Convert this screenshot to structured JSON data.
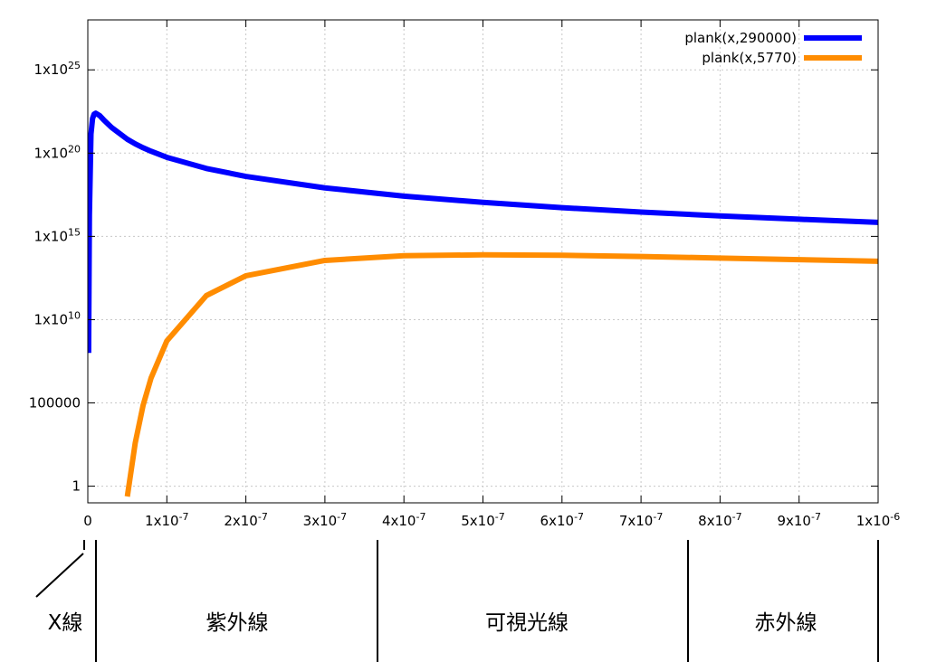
{
  "chart_data": {
    "type": "line",
    "log_y": true,
    "grid": true,
    "legend": "top right",
    "x": [
      1e-09,
      2e-09,
      4e-09,
      6e-09,
      8e-09,
      1e-08,
      1.5e-08,
      2e-08,
      3e-08,
      5e-08,
      6e-08,
      7e-08,
      8e-08,
      1e-07,
      1.5e-07,
      2e-07,
      3e-07,
      4e-07,
      5e-07,
      6e-07,
      7e-07,
      8e-07,
      9e-07,
      1e-06
    ],
    "series": [
      {
        "name": "plank(x,290000)",
        "color": "#0000ff",
        "values": [
          100000000.0,
          1.9e+16,
          1.4e+21,
          1.2e+22,
          2.2e+22,
          2.5e+22,
          1.8e+22,
          1e+22,
          3.5e+21,
          6.8e+20,
          3.6e+20,
          2.1e+20,
          1.3e+20,
          5.6e+19,
          1.2e+19,
          4e+18,
          8.2e+17,
          2.6e+17,
          1.1e+17,
          5.3e+16,
          2.9e+16,
          1.7e+16,
          1.07e+16,
          7000000000000000.0
        ]
      },
      {
        "name": "plank(x,5770)",
        "color": "#ff8c00",
        "values": [
          null,
          null,
          null,
          null,
          null,
          null,
          null,
          null,
          null,
          0.24,
          393,
          73000.0,
          3100000.0,
          530000000.0,
          280000000000.0,
          4300000000000.0,
          36000000000000.0,
          69000000000000.0,
          78000000000000.0,
          73000000000000.0,
          62000000000000.0,
          50000000000000.0,
          40000000000000.0,
          32000000000000.0
        ]
      }
    ],
    "xlim": [
      0,
      1e-06
    ],
    "ylim": [
      0.1,
      1e+28
    ],
    "xticks": [
      0,
      {
        "value": 1e-07,
        "label": "1x10",
        "exponent": "-7"
      },
      {
        "value": 2e-07,
        "label": "2x10",
        "exponent": "-7"
      },
      {
        "value": 3e-07,
        "label": "3x10",
        "exponent": "-7"
      },
      {
        "value": 4e-07,
        "label": "4x10",
        "exponent": "-7"
      },
      {
        "value": 5e-07,
        "label": "5x10",
        "exponent": "-7"
      },
      {
        "value": 6e-07,
        "label": "6x10",
        "exponent": "-7"
      },
      {
        "value": 7e-07,
        "label": "7x10",
        "exponent": "-7"
      },
      {
        "value": 8e-07,
        "label": "8x10",
        "exponent": "-7"
      },
      {
        "value": 9e-07,
        "label": "9x10",
        "exponent": "-7"
      },
      {
        "value": 1e-06,
        "label": "1x10",
        "exponent": "-6"
      }
    ],
    "yticks": [
      1,
      100000,
      {
        "value": 10000000000.0,
        "label": "1x10",
        "exponent": "10"
      },
      {
        "value": 1000000000000000.0,
        "label": "1x10",
        "exponent": "15"
      },
      {
        "value": 1e+20,
        "label": "1x10",
        "exponent": "20"
      },
      {
        "value": 1e+25,
        "label": "1x10",
        "exponent": "25"
      }
    ],
    "regions": [
      "X線",
      "紫外線",
      "可視光線",
      "赤外線"
    ]
  }
}
